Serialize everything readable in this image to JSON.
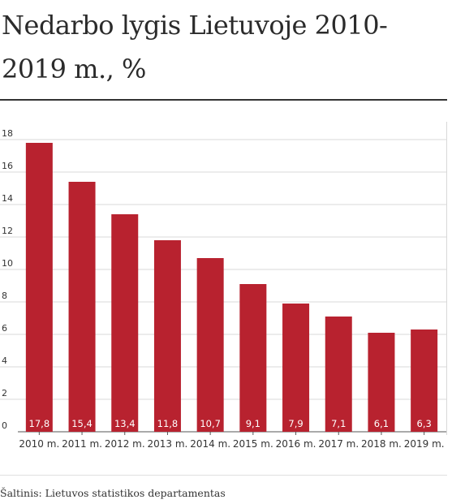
{
  "title": "Nedarbo lygis Lietuvoje 2010-2019 m., %",
  "source": "Šaltinis: Lietuvos statistikos departamentas",
  "colors": {
    "bar": "#b8222f",
    "grid": "#d9d9d9",
    "text": "#333333"
  },
  "chart_data": {
    "type": "bar",
    "categories": [
      "2010 m.",
      "2011 m.",
      "2012 m.",
      "2013 m.",
      "2014 m.",
      "2015 m.",
      "2016 m.",
      "2017 m.",
      "2018 m.",
      "2019 m."
    ],
    "values": [
      17.8,
      15.4,
      13.4,
      11.8,
      10.7,
      9.1,
      7.9,
      7.1,
      6.1,
      6.3
    ],
    "value_labels": [
      "17,8",
      "15,4",
      "13,4",
      "11,8",
      "10,7",
      "9,1",
      "7,9",
      "7,1",
      "6,1",
      "6,3"
    ],
    "y_ticks": [
      0,
      2,
      4,
      6,
      8,
      10,
      12,
      14,
      16,
      18
    ],
    "ylim": [
      0,
      18
    ],
    "grid": true,
    "legend": "none"
  }
}
